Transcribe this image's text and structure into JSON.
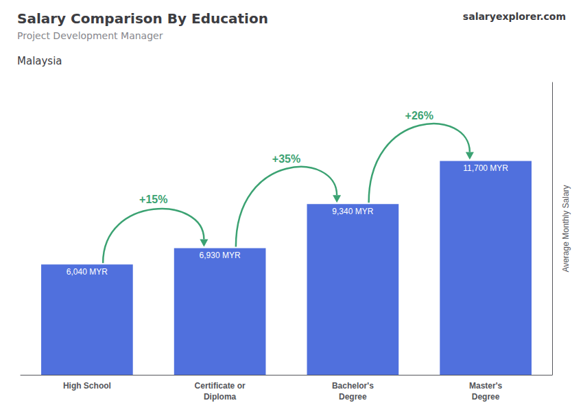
{
  "chart_data": {
    "type": "bar",
    "title": "Salary Comparison By Education",
    "subtitle": "Project Development Manager",
    "ylabel": "Average Monthly Salary",
    "categories": [
      "High School",
      "Certificate or\nDiploma",
      "Bachelor's\nDegree",
      "Master's\nDegree"
    ],
    "values": [
      6040,
      6930,
      9340,
      11700
    ],
    "value_labels": [
      "6,040 MYR",
      "6,930 MYR",
      "9,340 MYR",
      "11,700 MYR"
    ],
    "data_labels": true,
    "ylim": [
      0,
      16000
    ],
    "tick_labels": "x",
    "grid": false,
    "annotations": [
      {
        "text": "Malaysia"
      },
      {
        "text": "salaryexplorer.com"
      },
      {
        "text": "+15%",
        "from": "High School",
        "to": "Certificate or\nDiploma",
        "color": "#3ba272"
      },
      {
        "text": "+35%",
        "from": "Certificate or\nDiploma",
        "to": "Bachelor's\nDegree",
        "color": "#3ba272"
      },
      {
        "text": "+26%",
        "from": "Bachelor's\nDegree",
        "to": "Master's\nDegree",
        "color": "#3ba272"
      }
    ]
  }
}
